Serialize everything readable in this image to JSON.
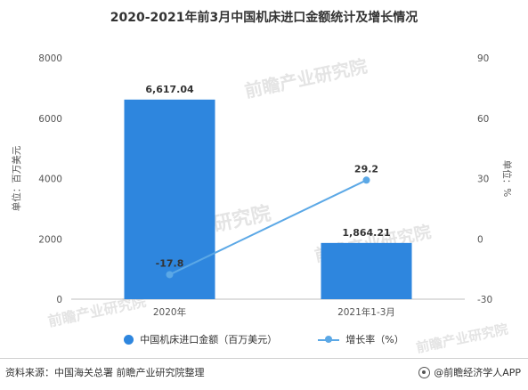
{
  "title": "2020-2021年前3月中国机床进口金额统计及增长情况",
  "footer": {
    "source": "资料来源：中国海关总署 前瞻产业研究院整理",
    "brand": "@前瞻经济学人APP"
  },
  "watermark": "前瞻产业研究院",
  "colors": {
    "bar": "#2E86DE",
    "line": "#5BA8E6",
    "axis": "#888888",
    "text": "#333333"
  },
  "chart_data": {
    "type": "bar",
    "categories": [
      "2020年",
      "2021年1-3月"
    ],
    "series": [
      {
        "name": "中国机床进口金额（百万美元）",
        "type": "bar",
        "axis": "left",
        "values": [
          6617.04,
          1864.21
        ],
        "labels": [
          "6,617.04",
          "1,864.21"
        ]
      },
      {
        "name": "增长率（%）",
        "type": "line",
        "axis": "right",
        "values": [
          -17.8,
          29.2
        ],
        "labels": [
          "-17.8",
          "29.2"
        ]
      }
    ],
    "ylabel": "单位：百万美元",
    "ylim": [
      0,
      8000
    ],
    "yticks": [
      0,
      2000,
      4000,
      6000,
      8000
    ],
    "y2label": "单位：%",
    "y2lim": [
      -30,
      90
    ],
    "y2ticks": [
      -30,
      0,
      30,
      60,
      90
    ],
    "grid": false,
    "legend_position": "bottom"
  }
}
